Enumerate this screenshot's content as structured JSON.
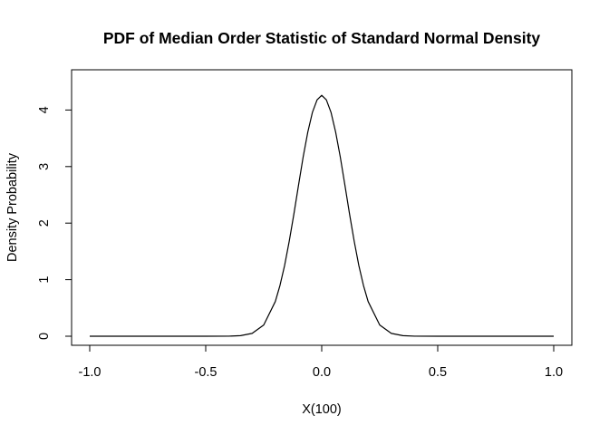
{
  "chart_data": {
    "type": "line",
    "title": "PDF of Median Order Statistic of Standard Normal Density",
    "xlabel": "X(100)",
    "ylabel": "Density Probability",
    "xlim": [
      -1.0,
      1.0
    ],
    "ylim": [
      0,
      4.5
    ],
    "x_ticks": [
      -1.0,
      -0.5,
      0.0,
      0.5,
      1.0
    ],
    "x_tick_labels": [
      "-1.0",
      "-0.5",
      "0.0",
      "0.5",
      "1.0"
    ],
    "y_ticks": [
      0,
      1,
      2,
      3,
      4
    ],
    "y_tick_labels": [
      "0",
      "1",
      "2",
      "3",
      "4"
    ],
    "grid": false,
    "series": [
      {
        "color": "#000000",
        "x": [
          -1.0,
          -0.5,
          -0.4,
          -0.35,
          -0.3,
          -0.25,
          -0.2,
          -0.18,
          -0.16,
          -0.14,
          -0.12,
          -0.1,
          -0.08,
          -0.06,
          -0.04,
          -0.02,
          0.0,
          0.02,
          0.04,
          0.06,
          0.08,
          0.1,
          0.12,
          0.14,
          0.16,
          0.18,
          0.2,
          0.25,
          0.3,
          0.35,
          0.4,
          0.5,
          1.0
        ],
        "y": [
          0.0,
          0.0,
          0.001,
          0.01,
          0.05,
          0.198,
          0.614,
          0.897,
          1.25,
          1.68,
          2.16,
          2.67,
          3.17,
          3.61,
          3.96,
          4.18,
          4.26,
          4.18,
          3.96,
          3.61,
          3.17,
          2.67,
          2.16,
          1.68,
          1.25,
          0.897,
          0.614,
          0.198,
          0.05,
          0.01,
          0.001,
          0.0,
          0.0
        ]
      }
    ]
  }
}
